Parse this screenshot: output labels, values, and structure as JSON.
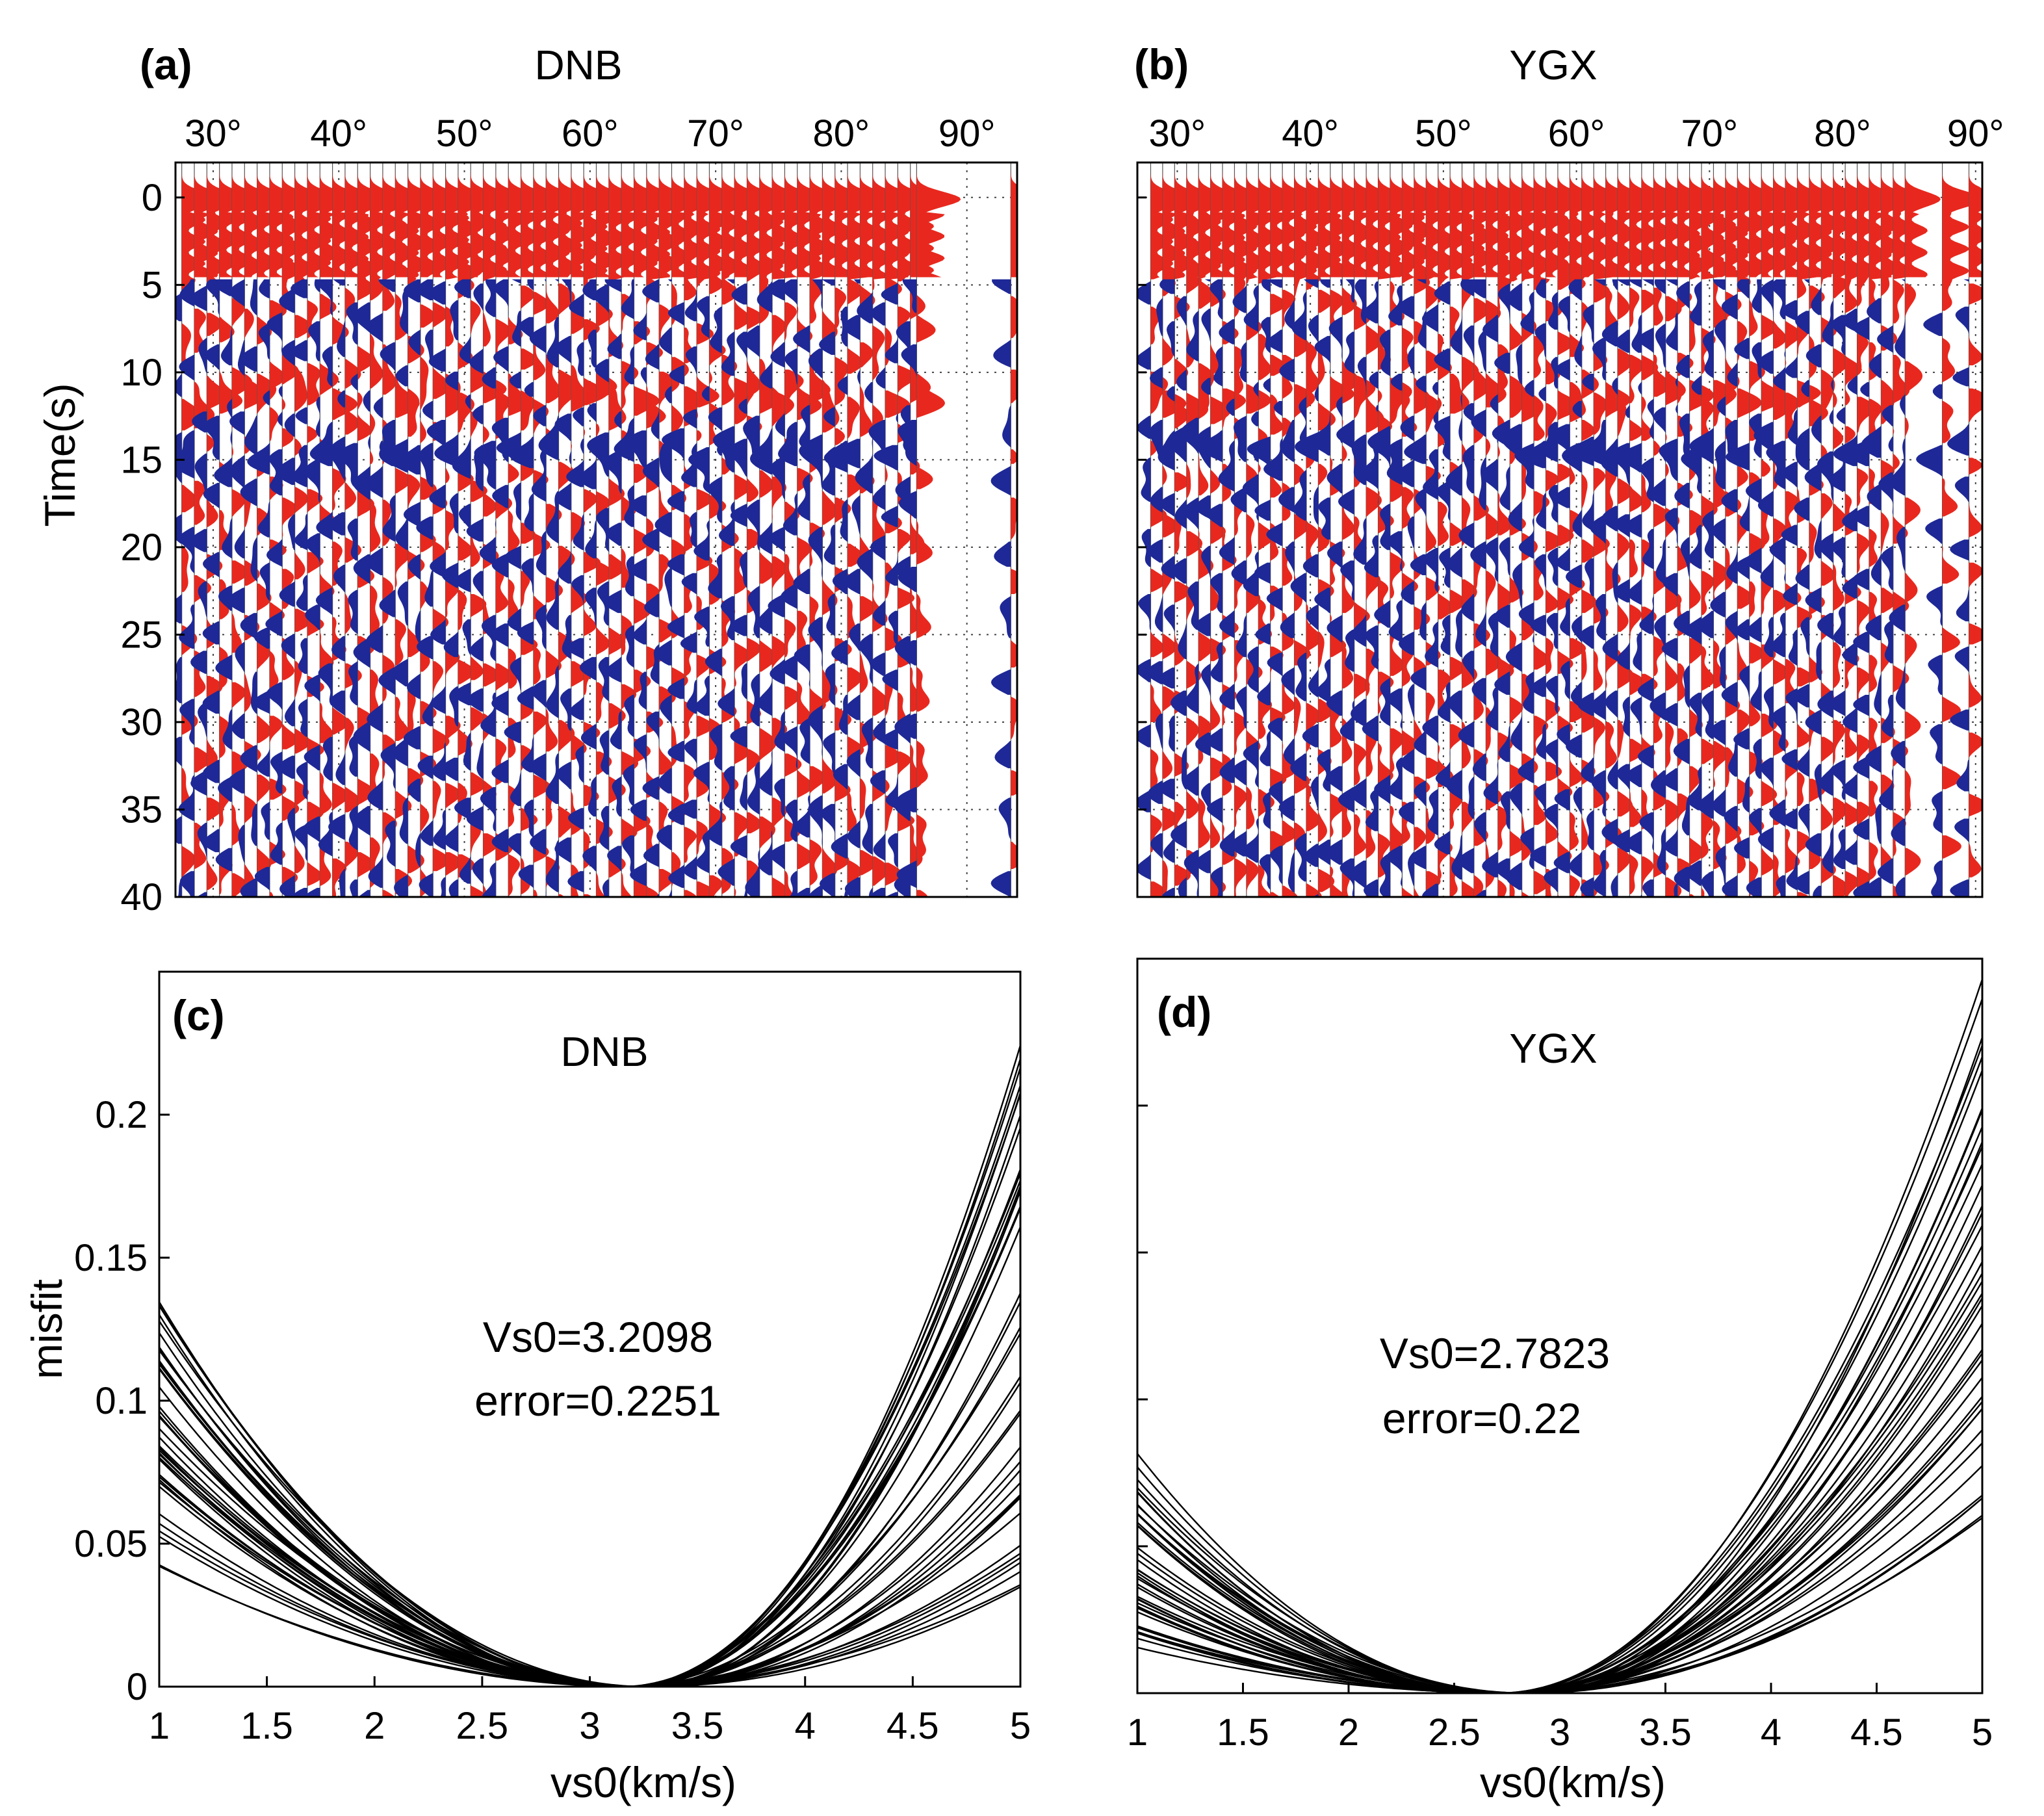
{
  "colors": {
    "positive": "#e8281e",
    "negative": "#1e2896",
    "curve": "#000000",
    "grid": "#444444"
  },
  "chart_data": [
    {
      "panel": "(a)",
      "type": "area",
      "title": "DNB",
      "ylabel": "Time(s)",
      "ylim": [
        40,
        -2
      ],
      "xlim": [
        27,
        94
      ],
      "x_tick_labels": [
        "30°",
        "40°",
        "50°",
        "60°",
        "70°",
        "80°",
        "90°"
      ],
      "x_ticks": [
        30,
        40,
        50,
        60,
        70,
        80,
        90
      ],
      "y_tick_labels": [
        "0",
        "5",
        "10",
        "15",
        "20",
        "25",
        "30",
        "35",
        "40"
      ],
      "y_ticks": [
        0,
        5,
        10,
        15,
        20,
        25,
        30,
        35,
        40
      ],
      "trace_distances": {
        "start": 27.5,
        "end": 85.5,
        "step": 1
      },
      "sparse_traces": [
        86.0,
        93.5
      ],
      "trace_colors": {
        "positive": "red",
        "negative": "blue"
      }
    },
    {
      "panel": "(b)",
      "type": "area",
      "title": "YGX",
      "ylim": [
        40,
        -2
      ],
      "xlim": [
        27,
        90.5
      ],
      "x_tick_labels": [
        "30°",
        "40°",
        "50°",
        "60°",
        "70°",
        "80°",
        "90°"
      ],
      "x_ticks": [
        30,
        40,
        50,
        60,
        70,
        80,
        90
      ],
      "y_ticks": [
        0,
        5,
        10,
        15,
        20,
        25,
        30,
        35,
        40
      ],
      "trace_distances": {
        "start": 28,
        "end": 85.5,
        "step": 0.9
      },
      "sparse_traces": [
        87.5,
        89.5
      ],
      "trace_colors": {
        "positive": "red",
        "negative": "blue"
      }
    },
    {
      "panel": "(c)",
      "type": "line",
      "title": "DNB",
      "xlabel": "vs0(km/s)",
      "ylabel": "misfit",
      "xlim": [
        1,
        5
      ],
      "ylim": [
        0,
        0.25
      ],
      "x_tick_labels": [
        "1",
        "1.5",
        "2",
        "2.5",
        "3",
        "3.5",
        "4",
        "4.5",
        "5"
      ],
      "x_ticks": [
        1,
        1.5,
        2,
        2.5,
        3,
        3.5,
        4,
        4.5,
        5
      ],
      "y_tick_labels": [
        "0",
        "0.05",
        "0.1",
        "0.15",
        "0.2"
      ],
      "y_ticks": [
        0,
        0.05,
        0.1,
        0.15,
        0.2
      ],
      "curve_minimum_x": 3.2098,
      "curve_count": 40,
      "misfit_at_x1_range": [
        0.037,
        0.135
      ],
      "misfit_at_x5_range": [
        0.025,
        0.225
      ],
      "annotation_line1": "Vs0=3.2098",
      "annotation_line2": "error=0.2251"
    },
    {
      "panel": "(d)",
      "type": "line",
      "title": "YGX",
      "xlabel": "vs0(km/s)",
      "xlim": [
        1,
        5
      ],
      "ylim": [
        0,
        0.25
      ],
      "x_tick_labels": [
        "1",
        "1.5",
        "2",
        "2.5",
        "3",
        "3.5",
        "4",
        "4.5",
        "5"
      ],
      "x_ticks": [
        1,
        1.5,
        2,
        2.5,
        3,
        3.5,
        4,
        4.5,
        5
      ],
      "y_ticks": [
        0,
        0.05,
        0.1,
        0.15,
        0.2
      ],
      "curve_minimum_x": 2.7823,
      "curve_count": 40,
      "misfit_at_x1_range": [
        0.015,
        0.082
      ],
      "misfit_at_x5_range": [
        0.05,
        0.252
      ],
      "annotation_line1": "Vs0=2.7823",
      "annotation_line2": "error=0.22"
    }
  ]
}
